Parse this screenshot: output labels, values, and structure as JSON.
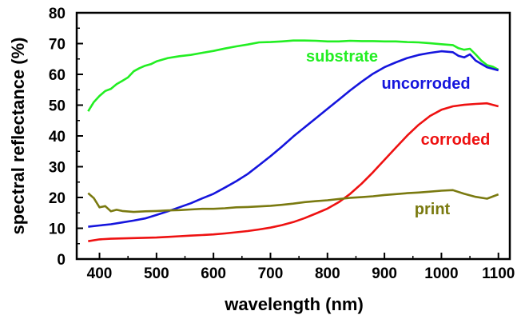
{
  "chart_data": {
    "type": "line",
    "title": "",
    "xlabel": "wavelength (nm)",
    "ylabel": "spectral reflectance (%)",
    "xlim": [
      360,
      1120
    ],
    "ylim": [
      0,
      80
    ],
    "x_ticks": [
      400,
      500,
      600,
      700,
      800,
      900,
      1000,
      1100
    ],
    "y_ticks": [
      0,
      10,
      20,
      30,
      40,
      50,
      60,
      70,
      80
    ],
    "grid": false,
    "legend": "none",
    "series": [
      {
        "name": "substrate",
        "color": "#22ee22",
        "x": [
          380,
          390,
          400,
          410,
          420,
          430,
          440,
          450,
          460,
          470,
          480,
          490,
          500,
          520,
          540,
          560,
          580,
          600,
          620,
          640,
          660,
          680,
          700,
          720,
          740,
          760,
          780,
          800,
          820,
          840,
          860,
          880,
          900,
          920,
          940,
          960,
          980,
          1000,
          1020,
          1030,
          1040,
          1050,
          1060,
          1070,
          1080,
          1090,
          1100
        ],
        "y": [
          48,
          51,
          53,
          54.6,
          55.3,
          56.8,
          57.9,
          59,
          61,
          62,
          62.8,
          63.3,
          64.2,
          65.3,
          65.9,
          66.3,
          67,
          67.6,
          68.4,
          69.1,
          69.7,
          70.4,
          70.5,
          70.7,
          71,
          71,
          70.9,
          70.7,
          70.7,
          70.9,
          70.8,
          70.8,
          70.7,
          70.7,
          70.5,
          70.4,
          70.1,
          69.8,
          69.5,
          68.5,
          68,
          68.3,
          66.5,
          64.5,
          63,
          62.5,
          61.5
        ]
      },
      {
        "name": "uncorroded",
        "color": "#1515dd",
        "x": [
          380,
          400,
          420,
          440,
          460,
          480,
          500,
          520,
          540,
          560,
          580,
          600,
          620,
          640,
          660,
          680,
          700,
          720,
          740,
          760,
          780,
          800,
          820,
          840,
          860,
          880,
          900,
          920,
          940,
          960,
          980,
          1000,
          1020,
          1030,
          1040,
          1050,
          1060,
          1080,
          1100
        ],
        "y": [
          10.5,
          10.9,
          11.3,
          11.9,
          12.5,
          13.2,
          14.3,
          15.5,
          16.8,
          18.1,
          19.7,
          21.2,
          23.2,
          25.3,
          27.6,
          30.5,
          33.4,
          36.5,
          39.8,
          42.8,
          45.8,
          48.8,
          51.8,
          54.8,
          57.6,
          60.2,
          62.3,
          63.9,
          65.3,
          66.3,
          67,
          67.5,
          67.2,
          66,
          65.5,
          66.5,
          64.5,
          62.3,
          61.3
        ]
      },
      {
        "name": "corroded",
        "color": "#ee1111",
        "x": [
          380,
          400,
          420,
          440,
          460,
          480,
          500,
          520,
          540,
          560,
          580,
          600,
          620,
          640,
          660,
          680,
          700,
          720,
          740,
          760,
          780,
          800,
          820,
          840,
          860,
          880,
          900,
          920,
          940,
          960,
          980,
          1000,
          1020,
          1040,
          1060,
          1080,
          1100
        ],
        "y": [
          5.8,
          6.4,
          6.6,
          6.7,
          6.8,
          6.9,
          7,
          7.2,
          7.4,
          7.6,
          7.8,
          8,
          8.3,
          8.7,
          9.1,
          9.6,
          10.2,
          11,
          12,
          13.3,
          14.8,
          16.4,
          18.5,
          21.2,
          24.5,
          28.2,
          32.2,
          36.2,
          40.1,
          43.6,
          46.5,
          48.5,
          49.6,
          50.1,
          50.4,
          50.6,
          49.6
        ]
      },
      {
        "name": "print",
        "color": "#7a7a10",
        "x": [
          380,
          390,
          400,
          410,
          420,
          430,
          440,
          460,
          480,
          500,
          520,
          540,
          560,
          580,
          600,
          620,
          640,
          660,
          680,
          700,
          720,
          740,
          760,
          780,
          800,
          820,
          840,
          860,
          880,
          900,
          920,
          940,
          960,
          980,
          1000,
          1020,
          1040,
          1060,
          1080,
          1100
        ],
        "y": [
          21.4,
          19.8,
          16.8,
          17.2,
          15.5,
          16,
          15.6,
          15.3,
          15.5,
          15.6,
          15.8,
          15.9,
          16.1,
          16.3,
          16.3,
          16.5,
          16.8,
          16.9,
          17.1,
          17.3,
          17.6,
          18,
          18.5,
          18.8,
          19.1,
          19.5,
          19.9,
          20.1,
          20.4,
          20.8,
          21.1,
          21.4,
          21.6,
          21.9,
          22.2,
          22.4,
          21.2,
          20.2,
          19.6,
          21
        ]
      }
    ]
  }
}
